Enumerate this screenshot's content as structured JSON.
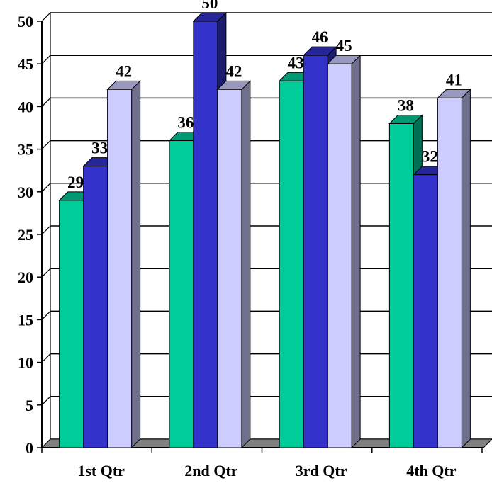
{
  "chart_data": {
    "type": "bar",
    "categories": [
      "1st Qtr",
      "2nd Qtr",
      "3rd Qtr",
      "4th Qtr"
    ],
    "series": [
      {
        "values": [
          29,
          36,
          43,
          38
        ],
        "color": "#00CC99"
      },
      {
        "values": [
          33,
          50,
          46,
          32
        ],
        "color": "#3333CC"
      },
      {
        "values": [
          42,
          42,
          45,
          41
        ],
        "color": "#CCCCFF"
      }
    ],
    "title": "",
    "xlabel": "",
    "ylabel": "",
    "ylim": [
      0,
      50
    ],
    "yticks": [
      "0",
      "5",
      "10",
      "15",
      "20",
      "25",
      "30",
      "35",
      "40",
      "45",
      "50"
    ],
    "data_labels": [
      [
        "29",
        "36",
        "43",
        "38"
      ],
      [
        "33",
        "50",
        "46",
        "32"
      ],
      [
        "42",
        "42",
        "45",
        "41"
      ]
    ],
    "grid": true,
    "legend": "none",
    "style": "3d-clustered-column"
  }
}
